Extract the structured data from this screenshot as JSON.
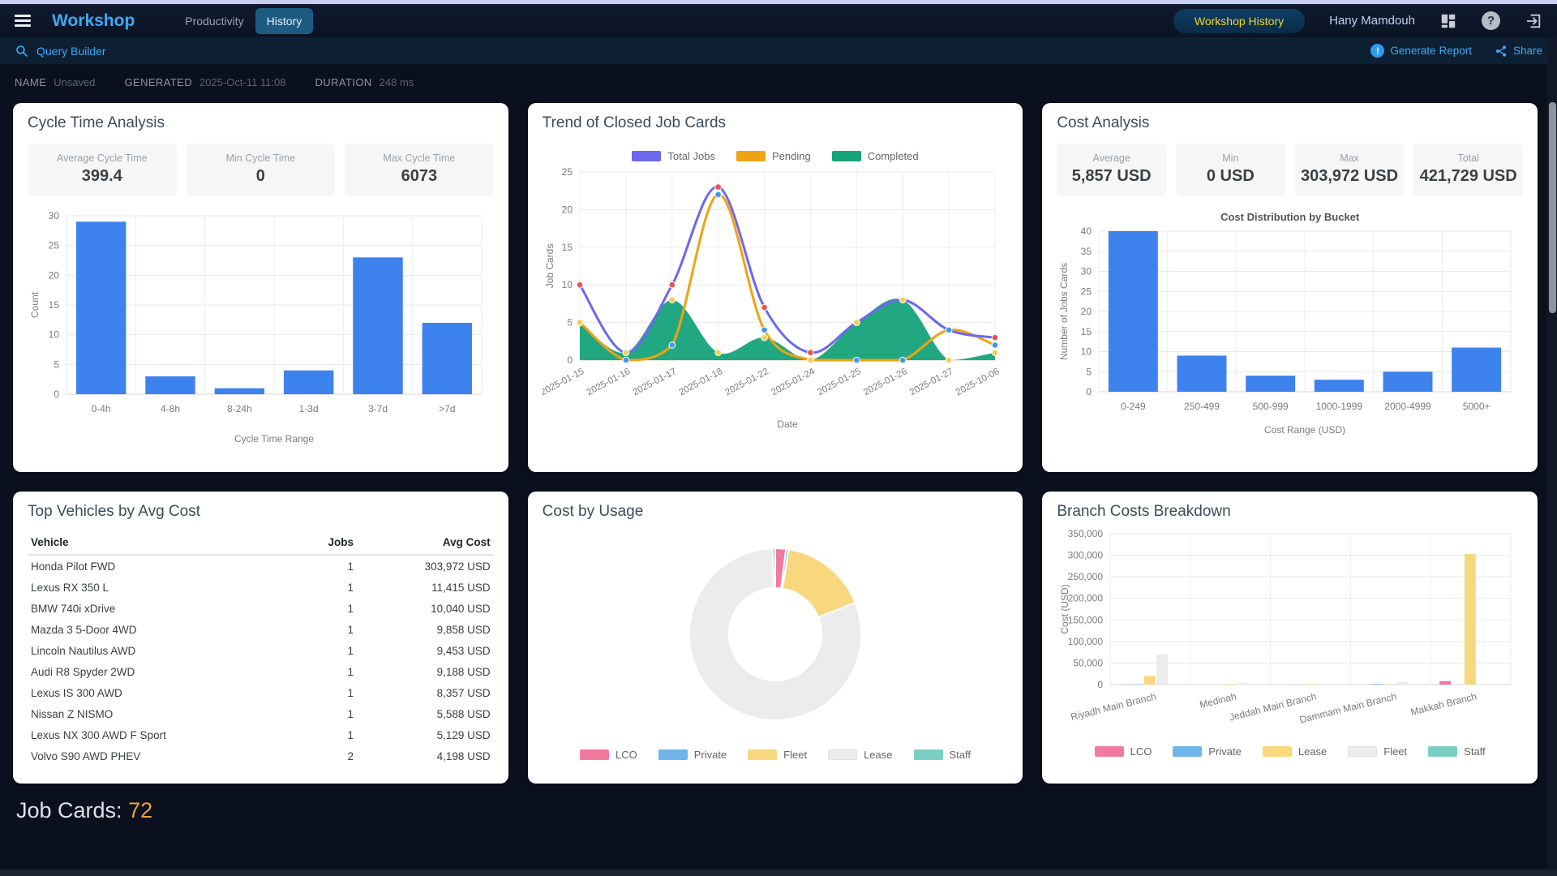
{
  "navbar": {
    "brand": "Workshop",
    "tabs": [
      {
        "label": "Productivity",
        "active": false
      },
      {
        "label": "History",
        "active": true
      }
    ],
    "history_button": "Workshop History",
    "user": "Hany Mamdouh"
  },
  "toolbar": {
    "query_builder": "Query Builder",
    "generate_report": "Generate Report",
    "share": "Share"
  },
  "meta": {
    "name_label": "NAME",
    "name_value": "Unsaved",
    "generated_label": "GENERATED",
    "generated_value": "2025-Oct-11 11:08",
    "duration_label": "DURATION",
    "duration_value": "248 ms"
  },
  "panels": {
    "cycle_time": {
      "title": "Cycle Time Analysis",
      "stats": [
        {
          "label": "Average Cycle Time",
          "value": "399.4"
        },
        {
          "label": "Min Cycle Time",
          "value": "0"
        },
        {
          "label": "Max Cycle Time",
          "value": "6073"
        }
      ]
    },
    "trend": {
      "title": "Trend of Closed Job Cards"
    },
    "cost": {
      "title": "Cost Analysis",
      "stats": [
        {
          "label": "Average",
          "value": "5,857 USD"
        },
        {
          "label": "Min",
          "value": "0 USD"
        },
        {
          "label": "Max",
          "value": "303,972 USD"
        },
        {
          "label": "Total",
          "value": "421,729 USD"
        }
      ]
    },
    "vehicles": {
      "title": "Top Vehicles by Avg Cost",
      "columns": [
        "Vehicle",
        "Jobs",
        "Avg Cost"
      ],
      "rows": [
        [
          "Honda Pilot FWD",
          "1",
          "303,972 USD"
        ],
        [
          "Lexus RX 350 L",
          "1",
          "11,415 USD"
        ],
        [
          "BMW 740i xDrive",
          "1",
          "10,040 USD"
        ],
        [
          "Mazda 3 5-Door 4WD",
          "1",
          "9,858 USD"
        ],
        [
          "Lincoln Nautilus AWD",
          "1",
          "9,453 USD"
        ],
        [
          "Audi R8 Spyder 2WD",
          "1",
          "9,188 USD"
        ],
        [
          "Lexus IS 300 AWD",
          "1",
          "8,357 USD"
        ],
        [
          "Nissan Z NISMO",
          "1",
          "5,588 USD"
        ],
        [
          "Lexus NX 300 AWD F Sport",
          "1",
          "5,129 USD"
        ],
        [
          "Volvo S90 AWD PHEV",
          "2",
          "4,198 USD"
        ]
      ]
    },
    "usage": {
      "title": "Cost by Usage"
    },
    "branch": {
      "title": "Branch Costs Breakdown"
    }
  },
  "footer": {
    "job_cards_label": "Job Cards:",
    "job_cards_value": "72"
  },
  "colors": {
    "accent_blue": "#3fa9f5",
    "bar_blue": "#3e82ee",
    "yellow_text": "#f2d32b",
    "count_orange": "#eda43c"
  },
  "chart_data": [
    {
      "id": "cycle-chart",
      "type": "bar",
      "categories": [
        "0-4h",
        "4-8h",
        "8-24h",
        "1-3d",
        "3-7d",
        ">7d"
      ],
      "values": [
        29,
        3,
        1,
        4,
        23,
        12
      ],
      "title": "",
      "xlabel": "Cycle Time Range",
      "ylabel": "Count",
      "ylim": [
        0,
        30
      ],
      "ystep": 5,
      "color": "#3e82ee",
      "grid": true
    },
    {
      "id": "trend-chart",
      "type": "line",
      "x": [
        "2025-01-15",
        "2025-01-16",
        "2025-01-17",
        "2025-01-18",
        "2025-01-22",
        "2025-01-24",
        "2025-01-25",
        "2025-01-26",
        "2025-01-27",
        "2025-10-06"
      ],
      "series": [
        {
          "name": "Total Jobs",
          "values": [
            10,
            1,
            10,
            23,
            7,
            1,
            5,
            8,
            4,
            3
          ],
          "color": "#6b68ee",
          "marker": "#e8534f"
        },
        {
          "name": "Pending",
          "values": [
            5,
            0,
            2,
            22,
            4,
            0,
            0,
            0,
            4,
            2
          ],
          "color": "#f0a312",
          "marker": "#3f9bea"
        },
        {
          "name": "Completed",
          "values": [
            5,
            1,
            8,
            1,
            3,
            0,
            5,
            8,
            0,
            1
          ],
          "color": "#16a379",
          "marker": "#efd159",
          "area": true
        }
      ],
      "xlabel": "Date",
      "ylabel": "Job Cards",
      "ylim": [
        0,
        25
      ],
      "ystep": 5,
      "legend": "top",
      "grid": true
    },
    {
      "id": "cost-chart",
      "type": "bar",
      "categories": [
        "0-249",
        "250-499",
        "500-999",
        "1000-1999",
        "2000-4999",
        "5000+"
      ],
      "values": [
        40,
        9,
        4,
        3,
        5,
        11
      ],
      "title": "Cost Distribution by Bucket",
      "xlabel": "Cost Range (USD)",
      "ylabel": "Number of Jobs Cards",
      "ylim": [
        0,
        40
      ],
      "ystep": 5,
      "color": "#3e82ee",
      "grid": true
    },
    {
      "id": "usage-chart",
      "type": "pie",
      "labels": [
        "LCO",
        "Private",
        "Fleet",
        "Lease",
        "Staff"
      ],
      "values": [
        2,
        0.5,
        16.5,
        80.5,
        0.5
      ],
      "colors": [
        "#f2799f",
        "#70b5e9",
        "#f8d87e",
        "#ececec",
        "#79cfc2"
      ],
      "legend": "bottom",
      "donut": true
    },
    {
      "id": "branch-chart",
      "type": "bar",
      "grouped": true,
      "categories": [
        "Riyadh Main Branch",
        "Medinah",
        "Jeddah Main Branch",
        "Dammam Main Branch",
        "Makkah Branch"
      ],
      "series": [
        {
          "name": "LCO",
          "values": [
            500,
            0,
            0,
            0,
            8000
          ],
          "color": "#f2799f"
        },
        {
          "name": "Private",
          "values": [
            1000,
            0,
            400,
            1500,
            0
          ],
          "color": "#70b5e9"
        },
        {
          "name": "Lease",
          "values": [
            20000,
            1500,
            700,
            600,
            303000
          ],
          "color": "#f8d87e"
        },
        {
          "name": "Fleet",
          "values": [
            70000,
            4800,
            1300,
            6000,
            600
          ],
          "color": "#ececec"
        },
        {
          "name": "Staff",
          "values": [
            0,
            0,
            0,
            0,
            0
          ],
          "color": "#79cfc2"
        }
      ],
      "xlabel": "",
      "ylabel": "Cost (USD)",
      "ylim": [
        0,
        350000
      ],
      "ystep": 50000,
      "legend": "bottom",
      "grid": true
    }
  ]
}
